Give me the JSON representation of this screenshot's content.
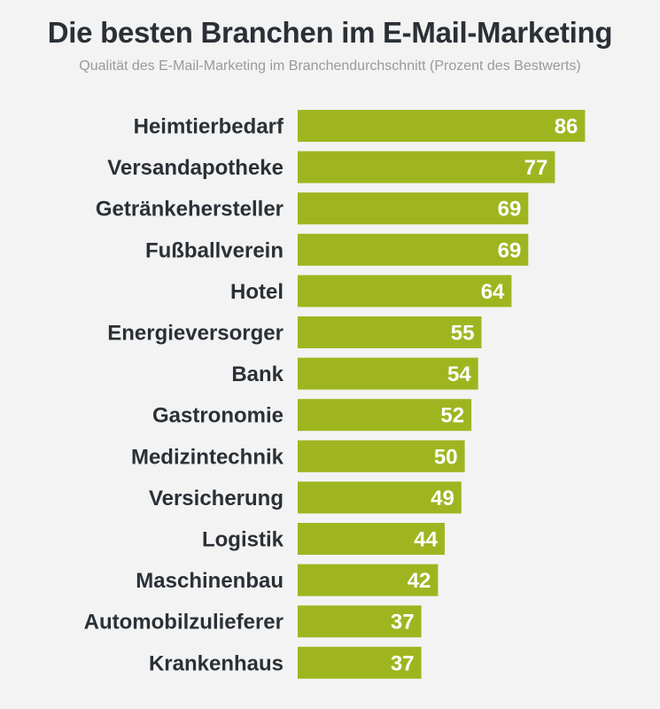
{
  "header": {
    "title": "Die besten Branchen im E-Mail-Marketing",
    "subtitle": "Qualität des E-Mail-Marketing im Branchendurchschnitt (Prozent des Bestwerts)"
  },
  "colors": {
    "bar": "#9fb520",
    "background": "#f3f3f3",
    "text": "#2a3036",
    "subtitle": "#9a9a9a",
    "value_label": "#ffffff"
  },
  "chart_data": {
    "type": "bar",
    "orientation": "horizontal",
    "title": "Die besten Branchen im E-Mail-Marketing",
    "subtitle": "Qualität des E-Mail-Marketing im Branchendurchschnitt (Prozent des Bestwerts)",
    "categories": [
      "Heimtierbedarf",
      "Versandapotheke",
      "Getränkehersteller",
      "Fußballverein",
      "Hotel",
      "Energieversorger",
      "Bank",
      "Gastronomie",
      "Medizintechnik",
      "Versicherung",
      "Logistik",
      "Maschinenbau",
      "Automobilzulieferer",
      "Krankenhaus"
    ],
    "values": [
      86,
      77,
      69,
      69,
      64,
      55,
      54,
      52,
      50,
      49,
      44,
      42,
      37,
      37
    ],
    "xlabel": "",
    "ylabel": "",
    "xlim": [
      0,
      100
    ],
    "grid": false,
    "legend": "none"
  }
}
